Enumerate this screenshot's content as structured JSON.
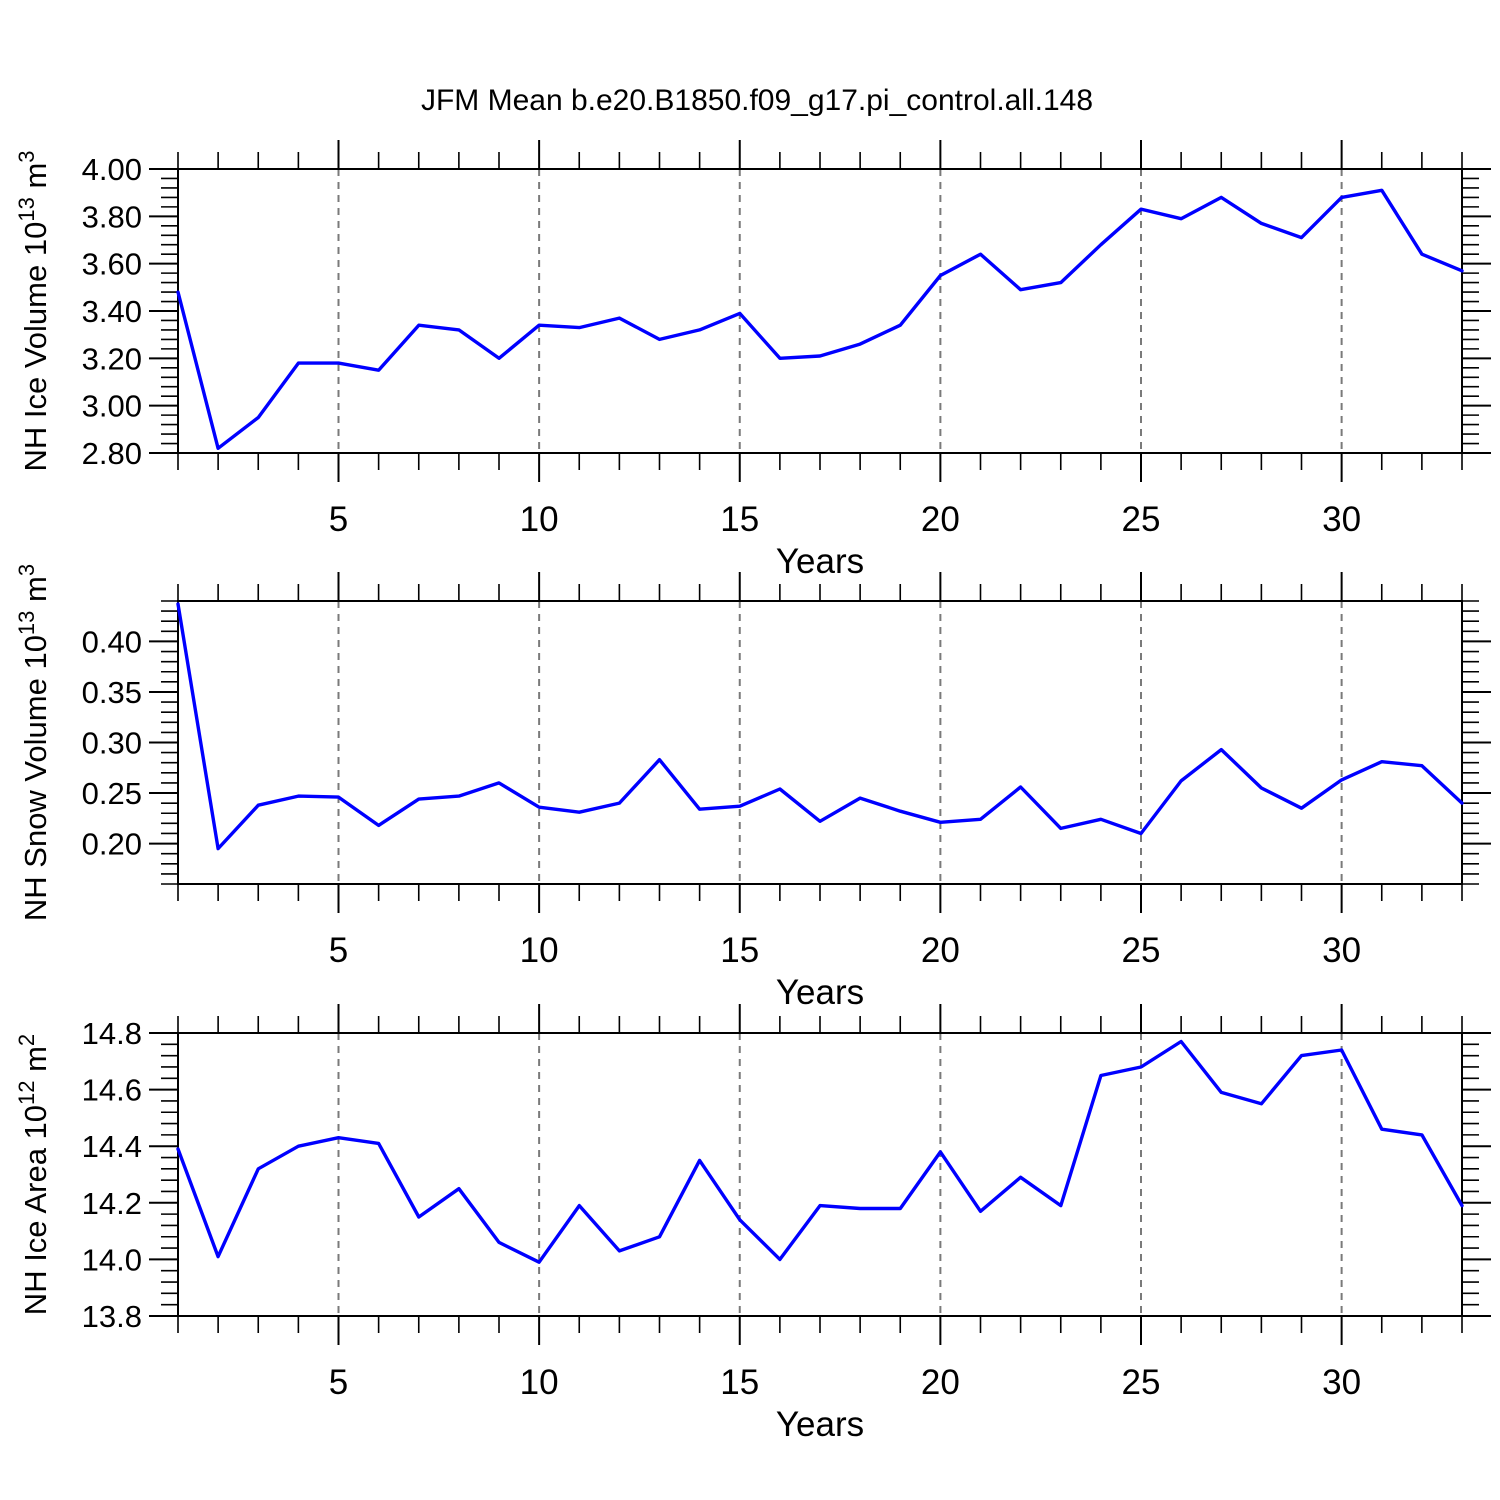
{
  "title": "JFM Mean b.e20.B1850.f09_g17.pi_control.all.148",
  "style": {
    "line_color": "#0000ff",
    "grid_color": "#7a7a7a",
    "axis_color": "#000000",
    "background": "#ffffff"
  },
  "chart_data": [
    {
      "type": "line",
      "name": "nh-ice-volume",
      "ylabel_plain": "NH Ice Volume 10^13 m^3",
      "ylabel_segments": [
        {
          "t": "NH Ice Volume 10"
        },
        {
          "t": "13",
          "sup": true
        },
        {
          "t": " m"
        },
        {
          "t": "3",
          "sup": true
        }
      ],
      "xlabel": "Years",
      "xlim": [
        1,
        33
      ],
      "ylim": [
        2.8,
        4.0
      ],
      "xticks": [
        {
          "v": 5,
          "label": "5"
        },
        {
          "v": 10,
          "label": "10"
        },
        {
          "v": 15,
          "label": "15"
        },
        {
          "v": 20,
          "label": "20"
        },
        {
          "v": 25,
          "label": "25"
        },
        {
          "v": 30,
          "label": "30"
        }
      ],
      "x_minor_step": 1,
      "yticks": [
        {
          "v": 2.8,
          "label": "2.80"
        },
        {
          "v": 3.0,
          "label": "3.00"
        },
        {
          "v": 3.2,
          "label": "3.20"
        },
        {
          "v": 3.4,
          "label": "3.40"
        },
        {
          "v": 3.6,
          "label": "3.60"
        },
        {
          "v": 3.8,
          "label": "3.80"
        },
        {
          "v": 4.0,
          "label": "4.00"
        }
      ],
      "y_minor_step": 0.04,
      "grid": "vertical-dashed-at-major-x",
      "x": [
        1,
        2,
        3,
        4,
        5,
        6,
        7,
        8,
        9,
        10,
        11,
        12,
        13,
        14,
        15,
        16,
        17,
        18,
        19,
        20,
        21,
        22,
        23,
        24,
        25,
        26,
        27,
        28,
        29,
        30,
        31,
        32,
        33
      ],
      "values": [
        3.48,
        2.82,
        2.95,
        3.18,
        3.18,
        3.15,
        3.34,
        3.32,
        3.2,
        3.34,
        3.33,
        3.37,
        3.28,
        3.32,
        3.39,
        3.2,
        3.21,
        3.26,
        3.34,
        3.55,
        3.64,
        3.49,
        3.52,
        3.68,
        3.83,
        3.79,
        3.88,
        3.77,
        3.71,
        3.88,
        3.91,
        3.64,
        3.57
      ]
    },
    {
      "type": "line",
      "name": "nh-snow-volume",
      "ylabel_plain": "NH Snow Volume 10^13 m^3",
      "ylabel_segments": [
        {
          "t": "NH Snow Volume 10"
        },
        {
          "t": "13",
          "sup": true
        },
        {
          "t": " m"
        },
        {
          "t": "3",
          "sup": true
        }
      ],
      "xlabel": "Years",
      "xlim": [
        1,
        33
      ],
      "ylim": [
        0.16,
        0.44
      ],
      "xticks": [
        {
          "v": 5,
          "label": "5"
        },
        {
          "v": 10,
          "label": "10"
        },
        {
          "v": 15,
          "label": "15"
        },
        {
          "v": 20,
          "label": "20"
        },
        {
          "v": 25,
          "label": "25"
        },
        {
          "v": 30,
          "label": "30"
        }
      ],
      "x_minor_step": 1,
      "yticks": [
        {
          "v": 0.2,
          "label": "0.20"
        },
        {
          "v": 0.25,
          "label": "0.25"
        },
        {
          "v": 0.3,
          "label": "0.30"
        },
        {
          "v": 0.35,
          "label": "0.35"
        },
        {
          "v": 0.4,
          "label": "0.40"
        }
      ],
      "y_minor_step": 0.01,
      "grid": "vertical-dashed-at-major-x",
      "x": [
        1,
        2,
        3,
        4,
        5,
        6,
        7,
        8,
        9,
        10,
        11,
        12,
        13,
        14,
        15,
        16,
        17,
        18,
        19,
        20,
        21,
        22,
        23,
        24,
        25,
        26,
        27,
        28,
        29,
        30,
        31,
        32,
        33
      ],
      "values": [
        0.437,
        0.195,
        0.238,
        0.247,
        0.246,
        0.218,
        0.244,
        0.247,
        0.26,
        0.236,
        0.231,
        0.24,
        0.283,
        0.234,
        0.237,
        0.254,
        0.222,
        0.245,
        0.232,
        0.221,
        0.224,
        0.256,
        0.215,
        0.224,
        0.21,
        0.262,
        0.293,
        0.255,
        0.235,
        0.263,
        0.281,
        0.277,
        0.24
      ]
    },
    {
      "type": "line",
      "name": "nh-ice-area",
      "ylabel_plain": "NH Ice Area 10^12 m^2",
      "ylabel_segments": [
        {
          "t": "NH Ice Area 10"
        },
        {
          "t": "12",
          "sup": true
        },
        {
          "t": " m"
        },
        {
          "t": "2",
          "sup": true
        }
      ],
      "xlabel": "Years",
      "xlim": [
        1,
        33
      ],
      "ylim": [
        13.8,
        14.8
      ],
      "xticks": [
        {
          "v": 5,
          "label": "5"
        },
        {
          "v": 10,
          "label": "10"
        },
        {
          "v": 15,
          "label": "15"
        },
        {
          "v": 20,
          "label": "20"
        },
        {
          "v": 25,
          "label": "25"
        },
        {
          "v": 30,
          "label": "30"
        }
      ],
      "x_minor_step": 1,
      "yticks": [
        {
          "v": 13.8,
          "label": "13.8"
        },
        {
          "v": 14.0,
          "label": "14.0"
        },
        {
          "v": 14.2,
          "label": "14.2"
        },
        {
          "v": 14.4,
          "label": "14.4"
        },
        {
          "v": 14.6,
          "label": "14.6"
        },
        {
          "v": 14.8,
          "label": "14.8"
        }
      ],
      "y_minor_step": 0.04,
      "grid": "vertical-dashed-at-major-x",
      "x": [
        1,
        2,
        3,
        4,
        5,
        6,
        7,
        8,
        9,
        10,
        11,
        12,
        13,
        14,
        15,
        16,
        17,
        18,
        19,
        20,
        21,
        22,
        23,
        24,
        25,
        26,
        27,
        28,
        29,
        30,
        31,
        32,
        33
      ],
      "values": [
        14.39,
        14.01,
        14.32,
        14.4,
        14.43,
        14.41,
        14.15,
        14.25,
        14.06,
        13.99,
        14.19,
        14.03,
        14.08,
        14.35,
        14.14,
        14.0,
        14.19,
        14.18,
        14.18,
        14.38,
        14.17,
        14.29,
        14.19,
        14.65,
        14.68,
        14.77,
        14.59,
        14.55,
        14.72,
        14.74,
        14.46,
        14.44,
        14.19
      ]
    }
  ]
}
